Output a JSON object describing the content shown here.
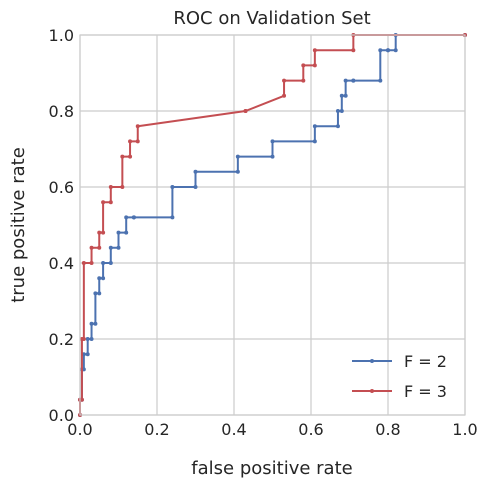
{
  "chart_data": {
    "type": "line",
    "title": "ROC on Validation Set",
    "xlabel": "false positive rate",
    "ylabel": "true positive rate",
    "xlim": [
      0,
      1
    ],
    "ylim": [
      0,
      1
    ],
    "xticks": [
      "0.0",
      "0.2",
      "0.4",
      "0.6",
      "0.8",
      "1.0"
    ],
    "yticks": [
      "0.0",
      "0.2",
      "0.4",
      "0.6",
      "0.8",
      "1.0"
    ],
    "grid": true,
    "legend_position": "bottom-right",
    "series": [
      {
        "name": "F = 2",
        "color": "#4c72b0",
        "x": [
          0.0,
          0.0,
          0.005,
          0.005,
          0.01,
          0.01,
          0.02,
          0.02,
          0.03,
          0.03,
          0.04,
          0.04,
          0.05,
          0.05,
          0.06,
          0.06,
          0.08,
          0.08,
          0.1,
          0.1,
          0.12,
          0.12,
          0.14,
          0.14,
          0.24,
          0.24,
          0.3,
          0.3,
          0.41,
          0.41,
          0.5,
          0.5,
          0.61,
          0.61,
          0.67,
          0.67,
          0.68,
          0.68,
          0.69,
          0.69,
          0.71,
          0.71,
          0.78,
          0.78,
          0.8,
          0.8,
          0.82,
          0.82,
          1.0
        ],
        "y": [
          0.0,
          0.04,
          0.04,
          0.12,
          0.12,
          0.16,
          0.16,
          0.2,
          0.2,
          0.24,
          0.24,
          0.32,
          0.32,
          0.36,
          0.36,
          0.4,
          0.4,
          0.44,
          0.44,
          0.48,
          0.48,
          0.52,
          0.52,
          0.52,
          0.52,
          0.6,
          0.6,
          0.64,
          0.64,
          0.68,
          0.68,
          0.72,
          0.72,
          0.76,
          0.76,
          0.8,
          0.8,
          0.84,
          0.84,
          0.88,
          0.88,
          0.88,
          0.88,
          0.96,
          0.96,
          0.96,
          0.96,
          1.0,
          1.0
        ]
      },
      {
        "name": "F = 3",
        "color": "#c44e52",
        "x": [
          0.0,
          0.0,
          0.005,
          0.005,
          0.01,
          0.01,
          0.03,
          0.03,
          0.05,
          0.05,
          0.06,
          0.06,
          0.08,
          0.08,
          0.11,
          0.11,
          0.13,
          0.13,
          0.15,
          0.15,
          0.43,
          0.43,
          0.53,
          0.53,
          0.58,
          0.58,
          0.61,
          0.61,
          0.71,
          0.71,
          1.0
        ],
        "y": [
          0.0,
          0.04,
          0.04,
          0.2,
          0.2,
          0.4,
          0.4,
          0.44,
          0.44,
          0.48,
          0.48,
          0.56,
          0.56,
          0.6,
          0.6,
          0.68,
          0.68,
          0.72,
          0.72,
          0.76,
          0.8,
          0.8,
          0.84,
          0.88,
          0.88,
          0.92,
          0.92,
          0.96,
          0.96,
          1.0,
          1.0
        ]
      }
    ]
  }
}
